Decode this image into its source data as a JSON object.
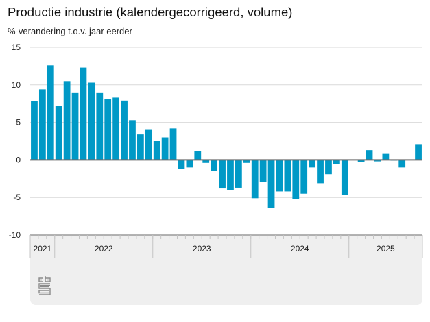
{
  "chart_data": {
    "type": "bar",
    "title": "Productie industrie (kalendergecorrigeerd, volume)",
    "subtitle": "%-verandering t.o.v. jaar eerder",
    "xlabel": "",
    "ylabel": "%-verandering t.o.v. jaar eerder",
    "ylim": [
      -10,
      15
    ],
    "yticks": [
      15,
      10,
      5,
      0,
      -5,
      -10
    ],
    "ytick_labels": [
      "15",
      "10",
      "5",
      "0",
      "-5",
      "-10"
    ],
    "grid": true,
    "bar_color": "#0099c6",
    "start_month": "2021-10",
    "year_groups": [
      {
        "label": "2021",
        "months": 3
      },
      {
        "label": "2022",
        "months": 12
      },
      {
        "label": "2023",
        "months": 12
      },
      {
        "label": "2024",
        "months": 12
      },
      {
        "label": "2025",
        "months": 9
      }
    ],
    "categories": [
      "2021-10",
      "2021-11",
      "2021-12",
      "2022-01",
      "2022-02",
      "2022-03",
      "2022-04",
      "2022-05",
      "2022-06",
      "2022-07",
      "2022-08",
      "2022-09",
      "2022-10",
      "2022-11",
      "2022-12",
      "2023-01",
      "2023-02",
      "2023-03",
      "2023-04",
      "2023-05",
      "2023-06",
      "2023-07",
      "2023-08",
      "2023-09",
      "2023-10",
      "2023-11",
      "2023-12",
      "2024-01",
      "2024-02",
      "2024-03",
      "2024-04",
      "2024-05",
      "2024-06",
      "2024-07",
      "2024-08",
      "2024-09",
      "2024-10",
      "2024-11",
      "2024-12",
      "2025-01",
      "2025-02",
      "2025-03",
      "2025-04",
      "2025-05",
      "2025-06",
      "2025-07",
      "2025-08",
      "2025-09"
    ],
    "values": [
      7.8,
      9.4,
      12.6,
      7.2,
      10.5,
      8.9,
      12.3,
      10.3,
      8.9,
      8.1,
      8.3,
      7.9,
      5.3,
      3.4,
      4.0,
      2.5,
      3.0,
      4.2,
      -1.2,
      -1.0,
      1.2,
      -0.4,
      -1.5,
      -3.8,
      -4.0,
      -3.7,
      -0.4,
      -5.1,
      -2.9,
      -6.4,
      -4.2,
      -4.2,
      -5.2,
      -4.5,
      -1.0,
      -3.1,
      -1.9,
      -0.6,
      -4.7,
      0.0,
      -0.3,
      1.3,
      -0.2,
      0.8,
      -0.1,
      -1.0,
      0.0,
      2.1
    ]
  },
  "logo": {
    "icon": "cbs-logo-icon"
  }
}
